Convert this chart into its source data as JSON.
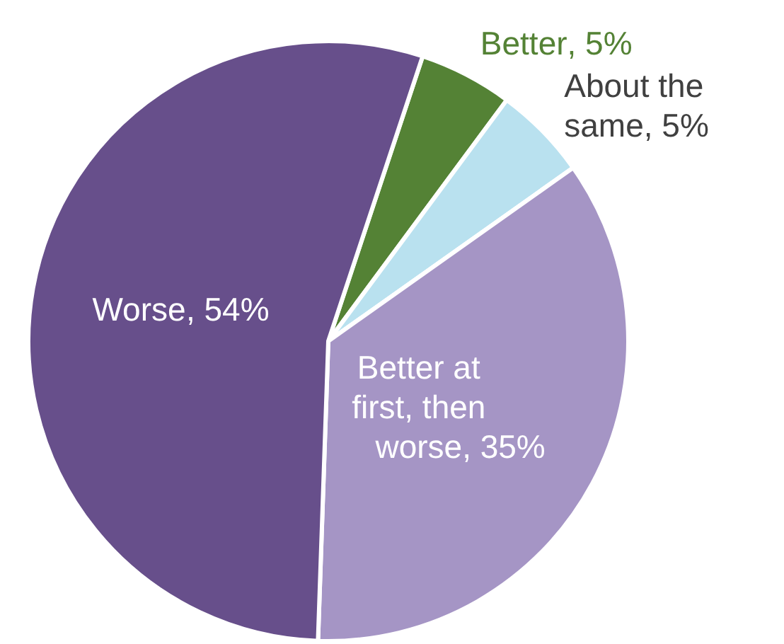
{
  "chart_data": {
    "type": "pie",
    "categories": [
      "Better",
      "About the same",
      "Better at first, then worse",
      "Worse"
    ],
    "values": [
      5,
      5,
      35,
      54
    ],
    "colors": [
      "#548235",
      "#b9e1ef",
      "#a595c5",
      "#674f8b"
    ],
    "value_labels": [
      ", 5%",
      ", 5%",
      ", 35%",
      ", 54%"
    ]
  }
}
